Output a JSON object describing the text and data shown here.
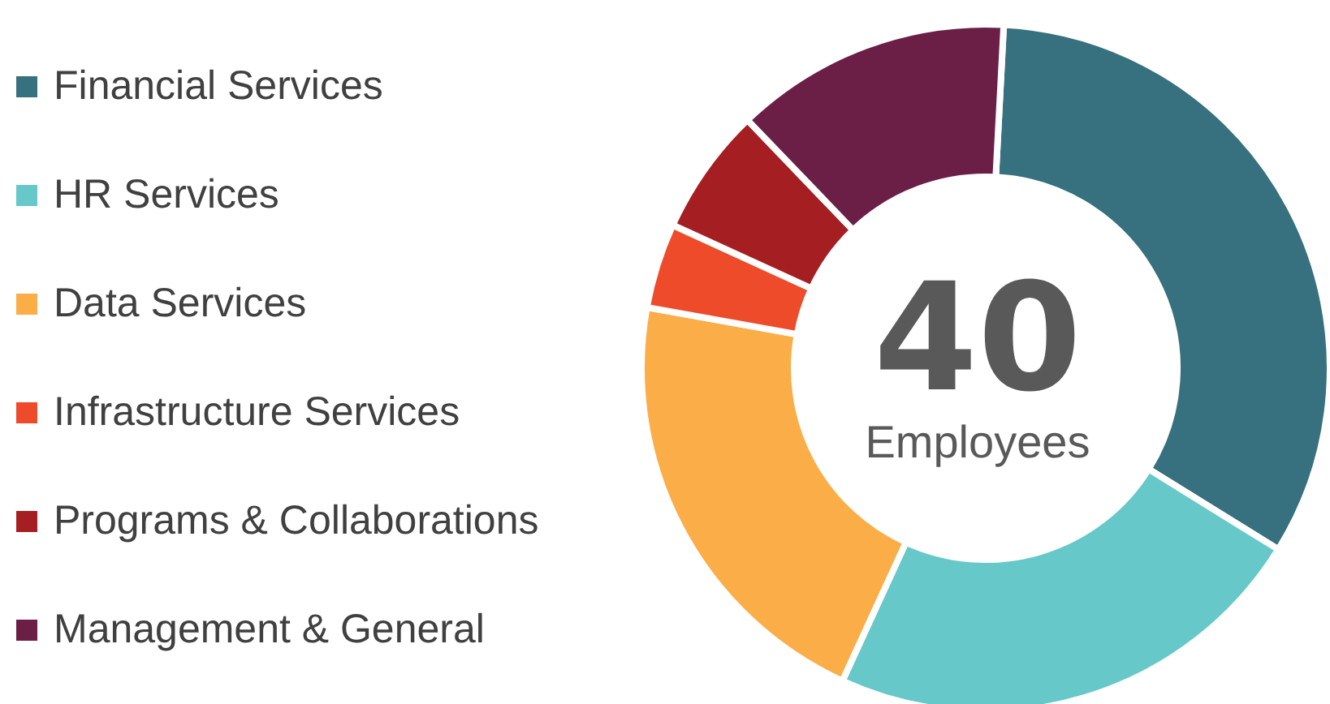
{
  "chart_data": {
    "type": "donut",
    "categories": [
      "Financial Services",
      "HR Services",
      "Data Services",
      "Infrastructure Services",
      "Programs & Collaborations",
      "Management & General"
    ],
    "values": [
      33,
      23,
      21,
      4,
      6,
      13
    ],
    "colors": [
      "#37707e",
      "#66c8c8",
      "#fbad47",
      "#ee4b2b",
      "#a51e22",
      "#6b1f47"
    ],
    "legend": "left",
    "annotations": [
      "40",
      "Employees"
    ]
  }
}
